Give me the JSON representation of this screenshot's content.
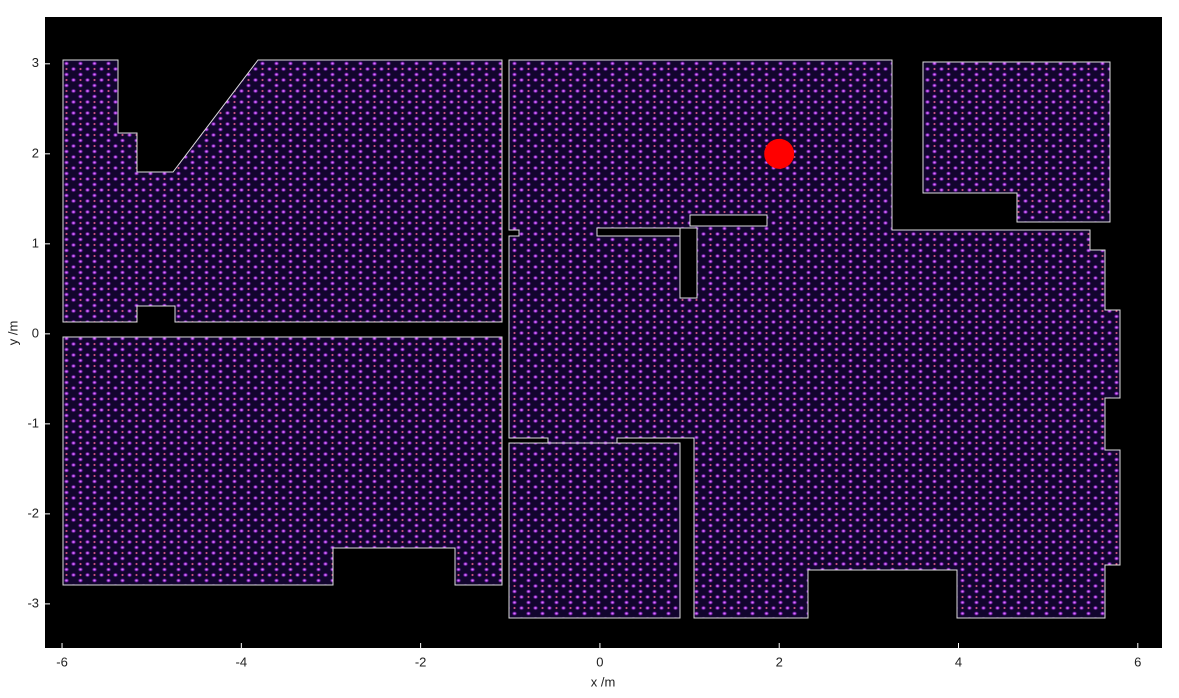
{
  "chart_data": {
    "type": "heatmap",
    "xlabel": "x /m",
    "ylabel": "y /m",
    "xlim": [
      -6.19,
      6.27
    ],
    "ylim": [
      -3.49,
      3.52
    ],
    "xticks": [
      -6,
      -4,
      -2,
      0,
      2,
      4,
      6
    ],
    "yticks": [
      -3,
      -2,
      -1,
      0,
      1,
      2,
      3
    ],
    "source": {
      "x": 2,
      "y": 2,
      "color": "#ff0000"
    }
  }
}
